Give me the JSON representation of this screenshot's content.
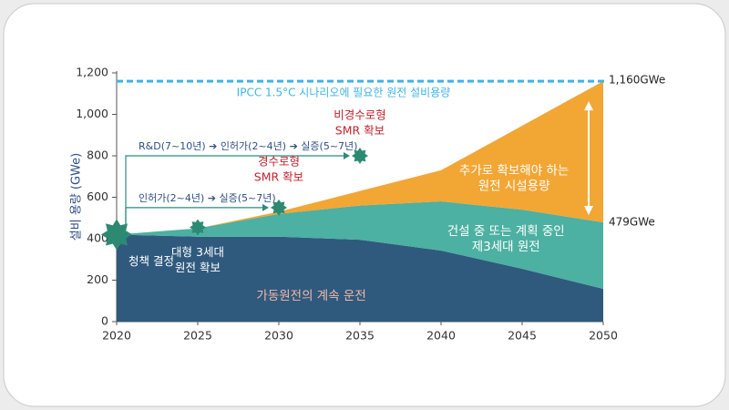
{
  "chart_data": {
    "type": "stacked_area",
    "y_label": "설비 용량 (GWe)",
    "x": [
      2020,
      2025,
      2030,
      2035,
      2040,
      2045,
      2050
    ],
    "xlim": [
      2020,
      2050
    ],
    "xticks": [
      2020,
      2025,
      2030,
      2035,
      2040,
      2045,
      2050
    ],
    "ylim": [
      0,
      1200
    ],
    "yticks": [
      0,
      200,
      400,
      600,
      800,
      {
        "value": 1000,
        "label": "1,000"
      },
      {
        "value": 1200,
        "label": "1,200"
      }
    ],
    "series": [
      {
        "name": "가동원전의 계속 운전",
        "color": "#2f5a7d",
        "label_color": "#f4b8a8",
        "values": [
          420,
          410,
          410,
          395,
          343,
          255,
          158
        ]
      },
      {
        "name": "건설 중 또는 계획 중인\n제3세대 원전",
        "color": "#4cb0a2",
        "label_color": "#ffffff",
        "values": [
          0,
          40,
          110,
          165,
          237,
          285,
          321
        ]
      },
      {
        "name": "추가로 확보해야 하는\n원전 시설용량",
        "color": "#f2a634",
        "label_color": "#ffffff",
        "values": [
          0,
          0,
          10,
          70,
          150,
          405,
          681
        ]
      }
    ],
    "target": {
      "value": 1160,
      "label": "IPCC 1.5°C 시나리오에 필요한 원전 설비용량",
      "value_label": "1,160GWe",
      "color": "#3cb4e6"
    },
    "end_label": {
      "value": 479,
      "label": "479GWe"
    },
    "milestones": [
      {
        "x": 2020,
        "y": 420,
        "label": "청책 결정",
        "label_color": "#ffffff"
      },
      {
        "x": 2025,
        "y": 455,
        "label": "대형 3세대\n원전 확보",
        "label_color": "#ffffff"
      },
      {
        "x": 2030,
        "y": 550,
        "label": "경수로형\nSMR 확보",
        "label_color": "#c4222c",
        "timeline": "인허가(2~4년) ➔ 실증(5~7년)"
      },
      {
        "x": 2035,
        "y": 800,
        "label": "비경수로형\nSMR 확보",
        "label_color": "#c4222c",
        "timeline": "R&D(7~10년) ➔ 인허가(2~4년) ➔ 실증(5~7년)"
      }
    ]
  }
}
